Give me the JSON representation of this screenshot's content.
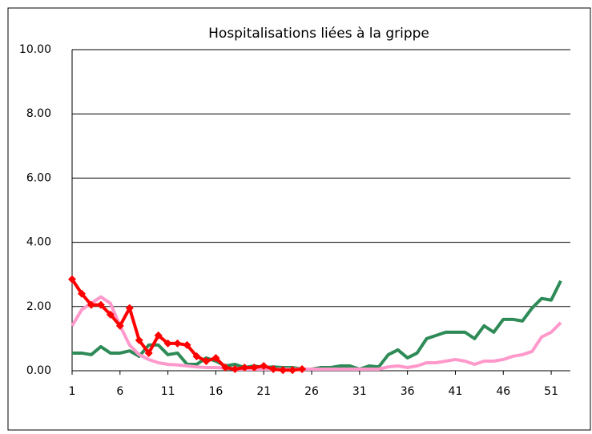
{
  "chart_data": {
    "type": "line",
    "title": "Hospitalisations liées à la grippe",
    "x": [
      1,
      2,
      3,
      4,
      5,
      6,
      7,
      8,
      9,
      10,
      11,
      12,
      13,
      14,
      15,
      16,
      17,
      18,
      19,
      20,
      21,
      22,
      23,
      24,
      25,
      26,
      27,
      28,
      29,
      30,
      31,
      32,
      33,
      34,
      35,
      36,
      37,
      38,
      39,
      40,
      41,
      42,
      43,
      44,
      45,
      46,
      47,
      48,
      49,
      50,
      51,
      52
    ],
    "xlim": [
      1,
      53
    ],
    "xticks": [
      1,
      6,
      11,
      16,
      21,
      26,
      31,
      36,
      41,
      46,
      51
    ],
    "ylim": [
      0,
      10
    ],
    "yticks": [
      {
        "value": 0,
        "label": "0.00"
      },
      {
        "value": 2,
        "label": "2.00"
      },
      {
        "value": 4,
        "label": "4.00"
      },
      {
        "value": 6,
        "label": "6.00"
      },
      {
        "value": 8,
        "label": "8.00"
      },
      {
        "value": 10,
        "label": "10.00"
      }
    ],
    "grid": true,
    "series": [
      {
        "color": "#2e8b57",
        "values": [
          0.55,
          0.55,
          0.5,
          0.75,
          0.55,
          0.55,
          0.62,
          0.45,
          0.8,
          0.8,
          0.5,
          0.55,
          0.2,
          0.2,
          0.4,
          0.3,
          0.15,
          0.2,
          0.1,
          0.15,
          0.1,
          0.12,
          0.1,
          0.1,
          0.05,
          0.05,
          0.1,
          0.1,
          0.15,
          0.15,
          0.05,
          0.15,
          0.12,
          0.5,
          0.65,
          0.4,
          0.55,
          1.0,
          1.1,
          1.2,
          1.2,
          1.2,
          1.0,
          1.4,
          1.2,
          1.6,
          1.6,
          1.55,
          1.95,
          2.25,
          2.2,
          2.8
        ]
      },
      {
        "color": "#ff99cc",
        "values": [
          1.4,
          1.9,
          2.1,
          2.3,
          2.1,
          1.4,
          0.8,
          0.5,
          0.35,
          0.25,
          0.2,
          0.18,
          0.15,
          0.12,
          0.1,
          0.1,
          0.08,
          0.05,
          0.05,
          0.05,
          0.05,
          0.05,
          0.05,
          0.05,
          0.05,
          0.05,
          0.05,
          0.05,
          0.05,
          0.05,
          0.05,
          0.05,
          0.05,
          0.12,
          0.15,
          0.1,
          0.15,
          0.25,
          0.25,
          0.3,
          0.35,
          0.3,
          0.2,
          0.3,
          0.3,
          0.35,
          0.45,
          0.5,
          0.6,
          1.05,
          1.2,
          1.5
        ]
      },
      {
        "color": "#ff0000",
        "marker": "diamond",
        "values": [
          2.85,
          2.4,
          2.05,
          2.05,
          1.75,
          1.4,
          1.95,
          0.95,
          0.55,
          1.1,
          0.85,
          0.85,
          0.8,
          0.45,
          0.3,
          0.4,
          0.1,
          0.05,
          0.1,
          0.1,
          0.15,
          0.05,
          0.02,
          0.02,
          0.05,
          null,
          null,
          null,
          null,
          null,
          null,
          null,
          null,
          null,
          null,
          null,
          null,
          null,
          null,
          null,
          null,
          null,
          null,
          null,
          null,
          null,
          null,
          null,
          null,
          null,
          null,
          null
        ]
      }
    ]
  }
}
